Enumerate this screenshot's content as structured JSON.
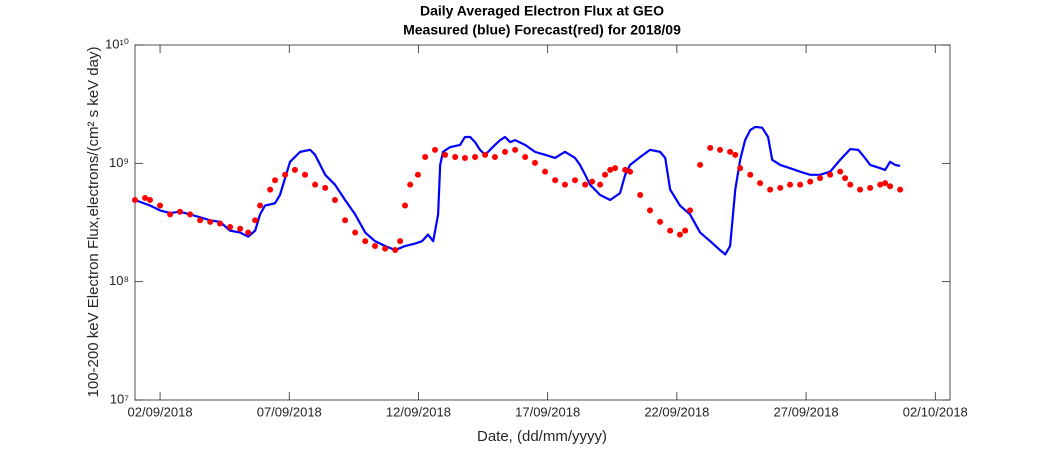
{
  "chart_data": {
    "type": "line",
    "title": "Daily Averaged Electron Flux at GEO",
    "subtitle": "Measured (blue) Forecast(red) for 2018/09",
    "xlabel": "Date, (dd/mm/yyyy)",
    "ylabel": "100-200 keV Electron Flux,electrons/(cm² s keV day)",
    "log_y": true,
    "grid": false,
    "xlim": [
      1.03,
      32.57
    ],
    "ylim": [
      10000000,
      10000000000
    ],
    "xticks": [
      {
        "value": 2,
        "label": "02/09/2018"
      },
      {
        "value": 7,
        "label": "07/09/2018"
      },
      {
        "value": 12,
        "label": "12/09/2018"
      },
      {
        "value": 17,
        "label": "17/09/2018"
      },
      {
        "value": 22,
        "label": "22/09/2018"
      },
      {
        "value": 27,
        "label": "27/09/2018"
      },
      {
        "value": 32,
        "label": "02/10/2018"
      }
    ],
    "yticks": [
      {
        "value": 10000000,
        "label": "10⁷"
      },
      {
        "value": 100000000,
        "label": "10⁸"
      },
      {
        "value": 1000000000,
        "label": "10⁹"
      },
      {
        "value": 10000000000,
        "label": "10¹⁰"
      }
    ],
    "series": [
      {
        "color": "#0000ff",
        "marker": "line",
        "x": [
          1.03,
          1.61,
          2,
          2.39,
          2.77,
          3.16,
          3.55,
          3.94,
          4.32,
          4.71,
          5.1,
          5.41,
          5.68,
          5.87,
          6.06,
          6.45,
          6.64,
          7.03,
          7.42,
          7.81,
          8.0,
          8.39,
          8.77,
          9.16,
          9.55,
          9.94,
          10.32,
          10.71,
          11.1,
          11.48,
          11.87,
          12.14,
          12.37,
          12.57,
          12.76,
          12.84,
          12.95,
          13.22,
          13.61,
          13.8,
          14.0,
          14.19,
          14.38,
          14.58,
          14.77,
          14.96,
          15.16,
          15.35,
          15.55,
          15.74,
          16.13,
          16.51,
          16.9,
          17.29,
          17.48,
          17.67,
          18.06,
          18.25,
          18.45,
          18.64,
          19.03,
          19.42,
          19.8,
          20.0,
          20.19,
          20.58,
          20.96,
          21.35,
          21.55,
          21.74,
          22.12,
          22.51,
          22.9,
          23.29,
          23.67,
          23.87,
          24.06,
          24.26,
          24.45,
          24.64,
          24.84,
          25.03,
          25.3,
          25.53,
          25.69,
          26.0,
          26.38,
          26.77,
          27.16,
          27.54,
          27.93,
          28.32,
          28.71,
          29.02,
          29.28,
          29.48,
          29.87,
          30.06,
          30.25,
          30.45,
          30.64
        ],
        "values": [
          490000000.0,
          440000000.0,
          400000000.0,
          380000000.0,
          390000000.0,
          370000000.0,
          350000000.0,
          330000000.0,
          320000000.0,
          270000000.0,
          260000000.0,
          240000000.0,
          270000000.0,
          370000000.0,
          440000000.0,
          460000000.0,
          540000000.0,
          1030000000.0,
          1250000000.0,
          1300000000.0,
          1180000000.0,
          800000000.0,
          660000000.0,
          490000000.0,
          370000000.0,
          260000000.0,
          220000000.0,
          200000000.0,
          185000000.0,
          200000000.0,
          210000000.0,
          220000000.0,
          250000000.0,
          220000000.0,
          370000000.0,
          970000000.0,
          1250000000.0,
          1370000000.0,
          1430000000.0,
          1670000000.0,
          1670000000.0,
          1510000000.0,
          1300000000.0,
          1180000000.0,
          1300000000.0,
          1430000000.0,
          1570000000.0,
          1670000000.0,
          1510000000.0,
          1570000000.0,
          1430000000.0,
          1250000000.0,
          1180000000.0,
          1110000000.0,
          1180000000.0,
          1250000000.0,
          1110000000.0,
          970000000.0,
          800000000.0,
          660000000.0,
          540000000.0,
          490000000.0,
          560000000.0,
          800000000.0,
          970000000.0,
          1130000000.0,
          1300000000.0,
          1250000000.0,
          1110000000.0,
          600000000.0,
          440000000.0,
          370000000.0,
          260000000.0,
          220000000.0,
          185000000.0,
          170000000.0,
          200000000.0,
          600000000.0,
          1070000000.0,
          1570000000.0,
          1910000000.0,
          2030000000.0,
          2000000000.0,
          1670000000.0,
          1070000000.0,
          970000000.0,
          910000000.0,
          850000000.0,
          800000000.0,
          800000000.0,
          850000000.0,
          1070000000.0,
          1320000000.0,
          1300000000.0,
          1110000000.0,
          970000000.0,
          910000000.0,
          880000000.0,
          1030000000.0,
          970000000.0,
          950000000.0
        ]
      },
      {
        "color": "#ff0000",
        "marker": "dot",
        "x": [
          1.03,
          1.42,
          1.61,
          2.0,
          2.39,
          2.77,
          3.16,
          3.55,
          3.94,
          4.32,
          4.71,
          5.1,
          5.41,
          5.68,
          5.87,
          6.26,
          6.45,
          6.84,
          7.22,
          7.61,
          8.0,
          8.39,
          8.77,
          9.16,
          9.55,
          9.94,
          10.32,
          10.71,
          11.1,
          11.29,
          11.48,
          11.68,
          11.98,
          12.26,
          12.64,
          13.03,
          13.42,
          13.8,
          14.19,
          14.58,
          14.96,
          15.35,
          15.74,
          16.13,
          16.51,
          16.9,
          17.29,
          17.67,
          18.06,
          18.45,
          18.72,
          19.03,
          19.22,
          19.42,
          19.61,
          20.0,
          20.19,
          20.58,
          20.96,
          21.35,
          21.74,
          22.12,
          22.32,
          22.51,
          22.9,
          23.29,
          23.67,
          24.06,
          24.26,
          24.45,
          24.84,
          25.22,
          25.61,
          26.0,
          26.38,
          26.77,
          27.16,
          27.54,
          27.93,
          28.32,
          28.51,
          28.71,
          29.09,
          29.48,
          29.87,
          30.06,
          30.25,
          30.64
        ],
        "values": [
          490000000.0,
          510000000.0,
          490000000.0,
          440000000.0,
          370000000.0,
          390000000.0,
          370000000.0,
          330000000.0,
          320000000.0,
          310000000.0,
          290000000.0,
          280000000.0,
          260000000.0,
          330000000.0,
          440000000.0,
          600000000.0,
          720000000.0,
          800000000.0,
          880000000.0,
          800000000.0,
          660000000.0,
          620000000.0,
          490000000.0,
          330000000.0,
          260000000.0,
          220000000.0,
          200000000.0,
          190000000.0,
          185000000.0,
          220000000.0,
          440000000.0,
          660000000.0,
          800000000.0,
          1130000000.0,
          1300000000.0,
          1180000000.0,
          1130000000.0,
          1110000000.0,
          1130000000.0,
          1180000000.0,
          1130000000.0,
          1250000000.0,
          1300000000.0,
          1130000000.0,
          1010000000.0,
          850000000.0,
          720000000.0,
          660000000.0,
          720000000.0,
          660000000.0,
          700000000.0,
          660000000.0,
          800000000.0,
          880000000.0,
          910000000.0,
          880000000.0,
          850000000.0,
          540000000.0,
          400000000.0,
          320000000.0,
          270000000.0,
          250000000.0,
          270000000.0,
          400000000.0,
          970000000.0,
          1350000000.0,
          1300000000.0,
          1250000000.0,
          1180000000.0,
          910000000.0,
          800000000.0,
          680000000.0,
          600000000.0,
          620000000.0,
          660000000.0,
          660000000.0,
          700000000.0,
          750000000.0,
          800000000.0,
          850000000.0,
          750000000.0,
          660000000.0,
          600000000.0,
          620000000.0,
          660000000.0,
          680000000.0,
          640000000.0,
          600000000.0
        ]
      }
    ]
  }
}
